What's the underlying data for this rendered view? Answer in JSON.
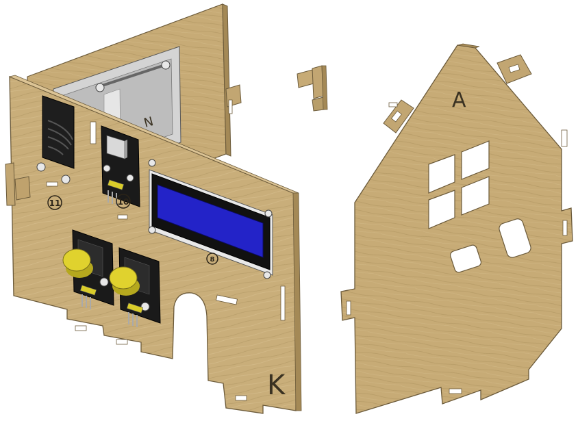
{
  "parts": {
    "front_panel": {
      "letter": "K"
    },
    "side_panel": {
      "letter": "N"
    },
    "house_panel": {
      "letter": "A"
    }
  },
  "callouts": {
    "speaker_module": "11",
    "sensor_module": "10",
    "lcd_module": "8"
  },
  "colors": {
    "wood": "#c7ac78",
    "wood_dark": "#a48956",
    "wood_grain": "#b59b68",
    "lcd_screen": "#2323c8",
    "lcd_frame": "#111111",
    "button_cap": "#d9cc2a",
    "bracket": "#c9c9c9",
    "pcb": "#1a1a1a"
  },
  "icons": [
    "speaker-icon",
    "screw-icon",
    "button-icon",
    "lcd-icon",
    "tab-connector-icon"
  ]
}
